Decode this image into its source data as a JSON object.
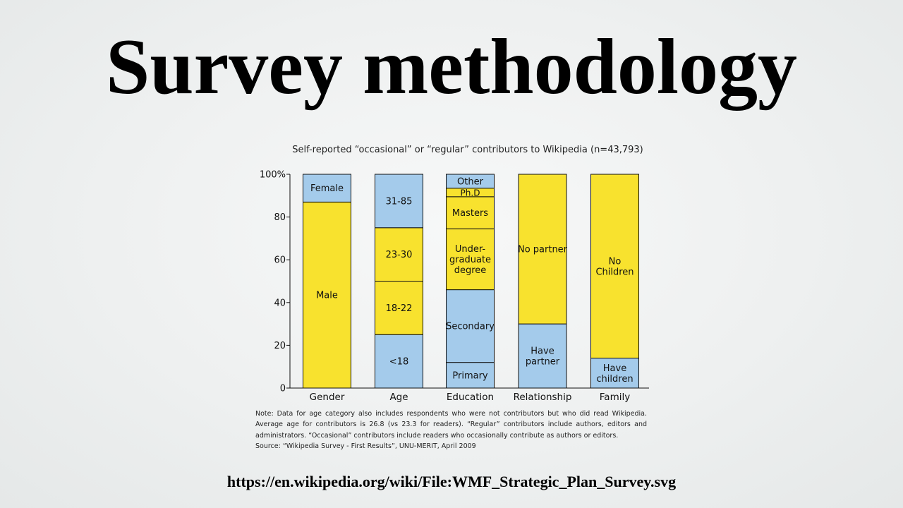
{
  "slide": {
    "title": "Survey methodology",
    "source_url": "https://en.wikipedia.org/wiki/File:WMF_Strategic_Plan_Survey.svg"
  },
  "chart_data": {
    "type": "bar",
    "stacked": true,
    "title": "Self-reported “occasional” or “regular” contributors to Wikipedia (n=43,793)",
    "xlabel": "",
    "ylabel": "",
    "ylim": [
      0,
      100
    ],
    "yticks": [
      0,
      20,
      40,
      60,
      80,
      100
    ],
    "ytick_labels": [
      "0",
      "20",
      "40",
      "60",
      "80",
      "100%"
    ],
    "grid": false,
    "legend": "none",
    "colors": {
      "blue": "#a4cbeb",
      "yellow": "#f8e22e",
      "stroke": "#111111"
    },
    "categories": [
      {
        "name": "Gender",
        "segments": [
          {
            "label": [
              "Male"
            ],
            "value": 87,
            "color": "yellow"
          },
          {
            "label": [
              "Female"
            ],
            "value": 13,
            "color": "blue"
          }
        ]
      },
      {
        "name": "Age",
        "segments": [
          {
            "label": [
              "<18"
            ],
            "value": 25,
            "color": "blue"
          },
          {
            "label": [
              "18-22"
            ],
            "value": 25,
            "color": "yellow"
          },
          {
            "label": [
              "23-30"
            ],
            "value": 25,
            "color": "yellow"
          },
          {
            "label": [
              "31-85"
            ],
            "value": 25,
            "color": "blue"
          }
        ]
      },
      {
        "name": "Education",
        "segments": [
          {
            "label": [
              "Primary"
            ],
            "value": 12,
            "color": "blue"
          },
          {
            "label": [
              "Secondary"
            ],
            "value": 34,
            "color": "blue"
          },
          {
            "label": [
              "Under-",
              "graduate",
              "degree"
            ],
            "value": 28.5,
            "color": "yellow"
          },
          {
            "label": [
              "Masters"
            ],
            "value": 15,
            "color": "yellow"
          },
          {
            "label": [
              "Ph.D"
            ],
            "value": 4,
            "color": "yellow"
          },
          {
            "label": [
              "Other"
            ],
            "value": 6.5,
            "color": "blue"
          }
        ]
      },
      {
        "name": "Relationship",
        "segments": [
          {
            "label": [
              "Have",
              "partner"
            ],
            "value": 30,
            "color": "blue"
          },
          {
            "label": [
              "No partner"
            ],
            "value": 70,
            "color": "yellow"
          }
        ]
      },
      {
        "name": "Family",
        "segments": [
          {
            "label": [
              "Have",
              "children"
            ],
            "value": 14,
            "color": "blue"
          },
          {
            "label": [
              "No",
              "Children"
            ],
            "value": 86,
            "color": "yellow"
          }
        ]
      }
    ],
    "note": "Note: Data for age category also includes respondents who were not contributors but who did read Wikipedia. Average age for contributors is 26.8 (vs 23.3 for readers). “Regular” contributors include authors, editors and administrators. “Occasional” contributors include readers who occasionally contribute as authors or editors.",
    "source": "Source: “Wikipedia Survey - First Results”, UNU-MERIT, April 2009"
  }
}
